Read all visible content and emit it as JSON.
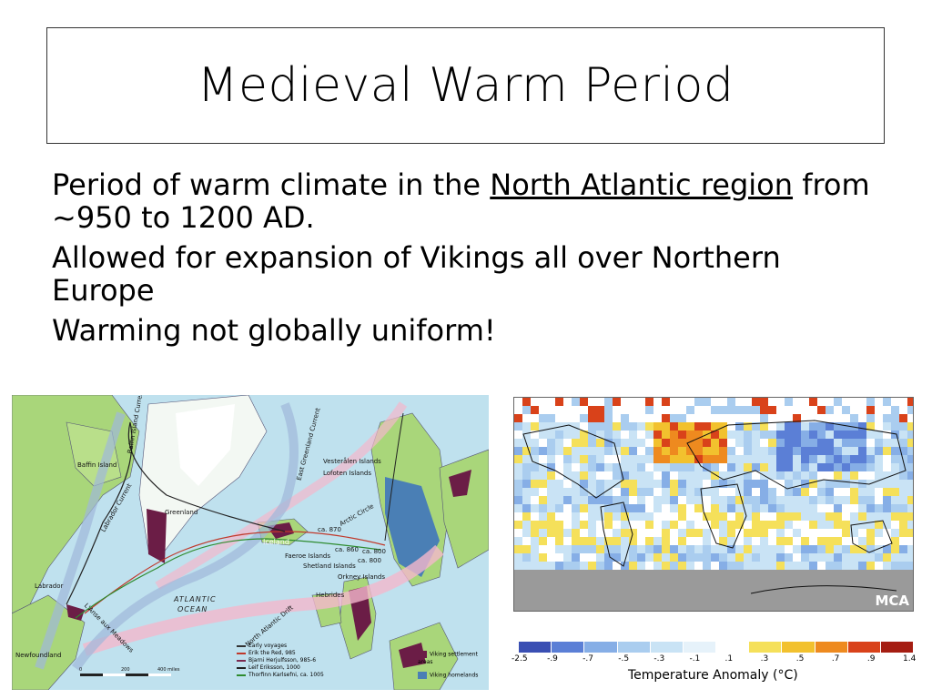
{
  "title": "Medieval Warm Period",
  "bullets": [
    {
      "pre": "Period of warm climate in the ",
      "link": "North Atlantic region",
      "post": " from ~950 to 1200 AD."
    },
    {
      "text": "Allowed for expansion of Vikings all over Northern Europe"
    },
    {
      "text": "Warming not globally uniform!"
    }
  ],
  "map": {
    "places": {
      "baffin": "Baffin Island",
      "greenland": "Greenland",
      "iceland": "Iceland",
      "labrador": "Labrador",
      "newfoundland": "Newfoundland",
      "vesteralen": "Vesterålen Islands",
      "lofoten": "Lofoten Islands",
      "faeroe": "Faeroe Islands",
      "shetland": "Shetland Islands",
      "orkney": "Orkney Islands",
      "hebrides": "Hebrides",
      "arctic_circle": "Arctic Circle",
      "anse": "L'Anse aux Meadows",
      "ocean1": "ATLANTIC",
      "ocean2": "OCEAN",
      "drift": "North Atlantic Drift",
      "labrador_current": "Labrador Current",
      "baffin_current": "Baffin Island Current",
      "east_greenland_current": "East Greenland Current",
      "ca870": "ca. 870",
      "ca860": "ca. 860",
      "ca800": "ca. 800",
      "ca800b": "ca. 800"
    },
    "scale": [
      "0",
      "200",
      "400 miles"
    ],
    "legend": [
      {
        "label": "Early voyages",
        "color": "#333333"
      },
      {
        "label": "Erik the Red, 985",
        "color": "#c0392b"
      },
      {
        "label": "Bjarni Herjulfsson, 985-6",
        "color": "#7a2a50"
      },
      {
        "label": "Leif Eriksson, 1000",
        "color": "#222222"
      },
      {
        "label": "Thorfinn Karlsefni, ca. 1005",
        "color": "#2e8b2e"
      }
    ],
    "viking_legend": [
      {
        "label": "Viking settlement areas",
        "color": "#6b1d46"
      },
      {
        "label": "Viking homelands",
        "color": "#4a7fb5"
      }
    ]
  },
  "anomaly_map": {
    "watermark": "MCA"
  },
  "colorbar": {
    "title": "Temperature Anomaly (°C)",
    "ticks": [
      "-2.5",
      "-.9",
      "-.7",
      "-.5",
      "-.3",
      "-.1",
      ".1",
      ".3",
      ".5",
      ".7",
      ".9",
      "1.4"
    ],
    "colors": [
      "#3a4fb3",
      "#5b7fd6",
      "#86aee6",
      "#aacdef",
      "#c9e3f5",
      "#e6f2fa",
      "#ffffff",
      "#f5e05a",
      "#f2c12e",
      "#ee8a1f",
      "#d9421a",
      "#a51d12"
    ]
  }
}
